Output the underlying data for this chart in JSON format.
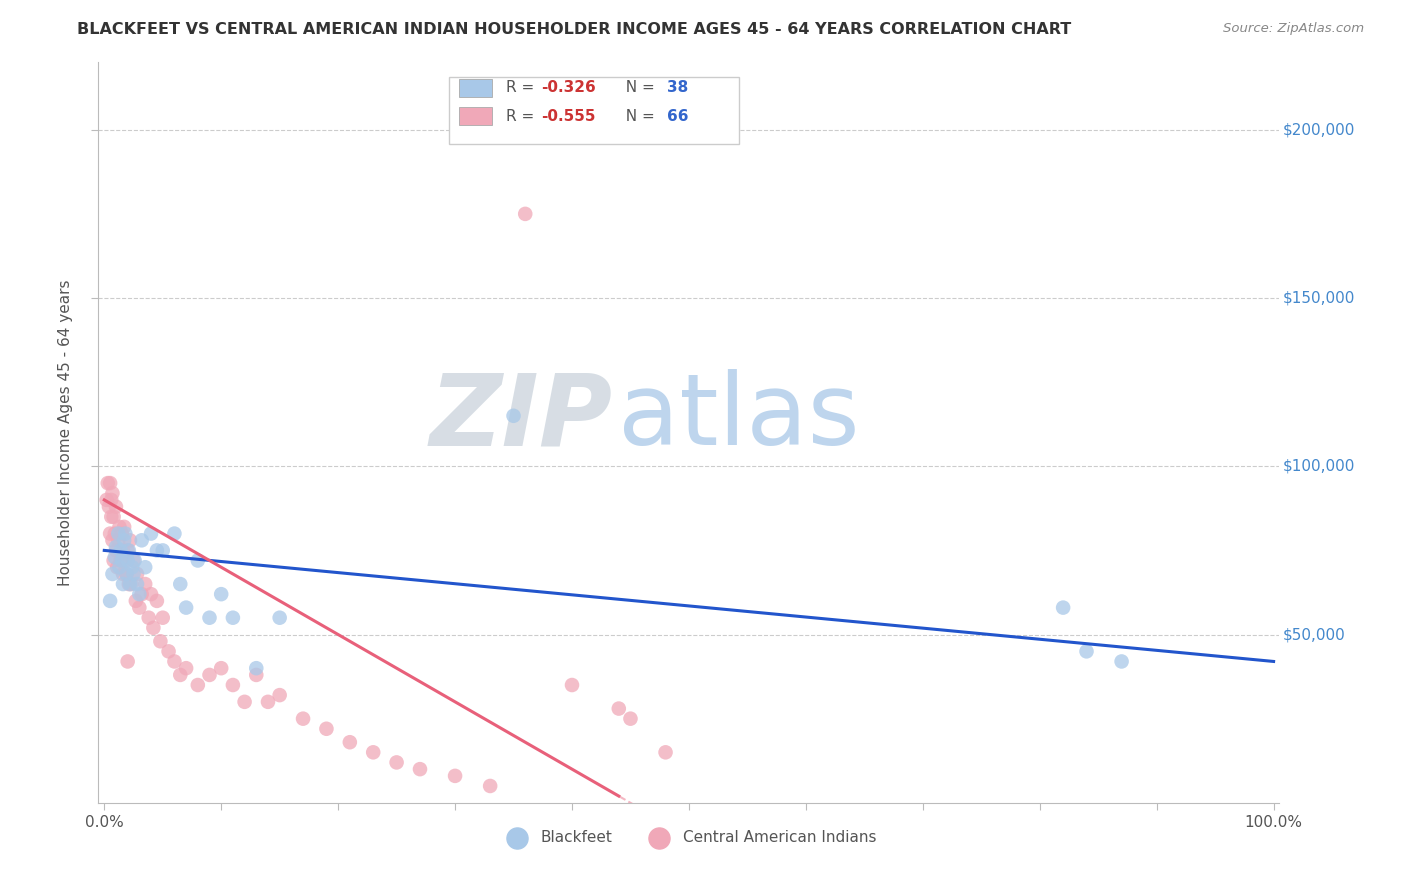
{
  "title": "BLACKFEET VS CENTRAL AMERICAN INDIAN HOUSEHOLDER INCOME AGES 45 - 64 YEARS CORRELATION CHART",
  "source": "Source: ZipAtlas.com",
  "ylabel": "Householder Income Ages 45 - 64 years",
  "ytick_labels": [
    "$50,000",
    "$100,000",
    "$150,000",
    "$200,000"
  ],
  "ytick_values": [
    50000,
    100000,
    150000,
    200000
  ],
  "ymin": 0,
  "ymax": 220000,
  "xmin": -0.005,
  "xmax": 1.005,
  "watermark_zip": "ZIP",
  "watermark_atlas": "atlas",
  "legend_blue_r": "-0.326",
  "legend_blue_n": "38",
  "legend_pink_r": "-0.555",
  "legend_pink_n": "66",
  "blue_color": "#a8c8e8",
  "pink_color": "#f0a8b8",
  "trendline_blue": "#2255cc",
  "trendline_pink": "#e8607a",
  "grid_color": "#cccccc",
  "blue_x": [
    0.005,
    0.007,
    0.009,
    0.01,
    0.012,
    0.013,
    0.014,
    0.015,
    0.016,
    0.017,
    0.018,
    0.019,
    0.02,
    0.021,
    0.022,
    0.024,
    0.025,
    0.026,
    0.028,
    0.03,
    0.032,
    0.035,
    0.04,
    0.045,
    0.05,
    0.06,
    0.065,
    0.07,
    0.08,
    0.09,
    0.1,
    0.11,
    0.13,
    0.15,
    0.35,
    0.82,
    0.84,
    0.87
  ],
  "blue_y": [
    60000,
    68000,
    73000,
    76000,
    80000,
    70000,
    75000,
    72000,
    65000,
    78000,
    80000,
    68000,
    72000,
    75000,
    65000,
    70000,
    68000,
    72000,
    65000,
    62000,
    78000,
    70000,
    80000,
    75000,
    75000,
    80000,
    65000,
    58000,
    72000,
    55000,
    62000,
    55000,
    40000,
    55000,
    115000,
    58000,
    45000,
    42000
  ],
  "pink_x": [
    0.002,
    0.003,
    0.004,
    0.005,
    0.005,
    0.006,
    0.006,
    0.007,
    0.007,
    0.008,
    0.008,
    0.009,
    0.01,
    0.01,
    0.011,
    0.012,
    0.013,
    0.014,
    0.015,
    0.016,
    0.016,
    0.017,
    0.018,
    0.019,
    0.02,
    0.021,
    0.022,
    0.023,
    0.025,
    0.027,
    0.028,
    0.03,
    0.032,
    0.035,
    0.038,
    0.04,
    0.042,
    0.045,
    0.048,
    0.05,
    0.055,
    0.06,
    0.065,
    0.07,
    0.08,
    0.09,
    0.1,
    0.11,
    0.12,
    0.13,
    0.14,
    0.15,
    0.17,
    0.19,
    0.21,
    0.23,
    0.25,
    0.27,
    0.3,
    0.33,
    0.36,
    0.4,
    0.44,
    0.45,
    0.48,
    0.02
  ],
  "pink_y": [
    90000,
    95000,
    88000,
    95000,
    80000,
    85000,
    90000,
    78000,
    92000,
    72000,
    85000,
    80000,
    75000,
    88000,
    70000,
    78000,
    82000,
    72000,
    80000,
    68000,
    75000,
    82000,
    72000,
    68000,
    75000,
    65000,
    78000,
    65000,
    72000,
    60000,
    68000,
    58000,
    62000,
    65000,
    55000,
    62000,
    52000,
    60000,
    48000,
    55000,
    45000,
    42000,
    38000,
    40000,
    35000,
    38000,
    40000,
    35000,
    30000,
    38000,
    30000,
    32000,
    25000,
    22000,
    18000,
    15000,
    12000,
    10000,
    8000,
    5000,
    175000,
    35000,
    28000,
    25000,
    15000,
    42000
  ]
}
